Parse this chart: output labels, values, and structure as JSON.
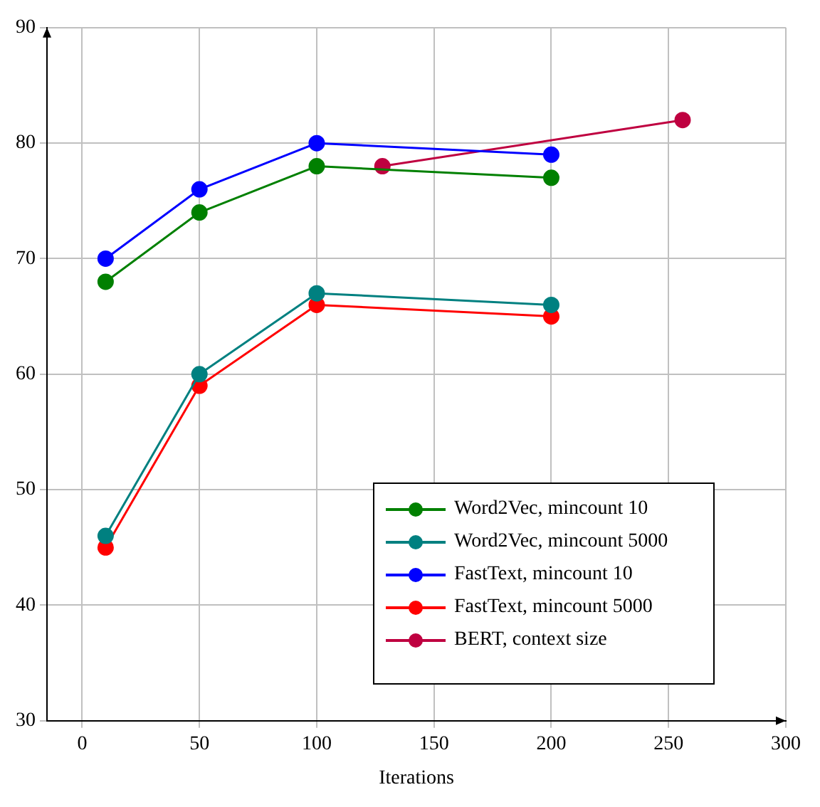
{
  "chart_data": {
    "type": "line",
    "xlabel": "Iterations",
    "xlim": [
      -15,
      300
    ],
    "xticks": [
      0,
      50,
      100,
      150,
      200,
      250,
      300
    ],
    "ylim": [
      30,
      90
    ],
    "yticks": [
      30,
      40,
      50,
      60,
      70,
      80,
      90
    ],
    "grid": true,
    "legend": "bottom right",
    "marker": "circle",
    "line_style": "solid",
    "series": [
      {
        "name": "Word2Vec, mincount 10",
        "color": "#008000",
        "x": [
          10,
          50,
          100,
          200
        ],
        "values": [
          68,
          74,
          78,
          77
        ]
      },
      {
        "name": "Word2Vec, mincount 5000",
        "color": "#008080",
        "x": [
          10,
          50,
          100,
          200
        ],
        "values": [
          46,
          60,
          67,
          66
        ]
      },
      {
        "name": "FastText, mincount 10",
        "color": "#0000ff",
        "x": [
          10,
          50,
          100,
          200
        ],
        "values": [
          70,
          76,
          80,
          79
        ]
      },
      {
        "name": "FastText, mincount 5000",
        "color": "#ff0000",
        "x": [
          10,
          50,
          100,
          200
        ],
        "values": [
          45,
          59,
          66,
          65
        ]
      },
      {
        "name": "BERT, context size",
        "color": "#bf0040",
        "x": [
          128,
          256
        ],
        "values": [
          78,
          82
        ]
      }
    ]
  }
}
